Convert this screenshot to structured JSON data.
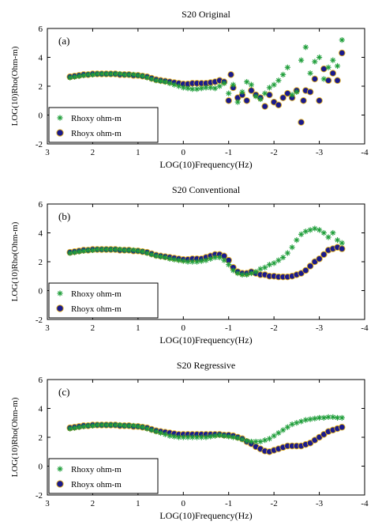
{
  "chart_data": [
    {
      "type": "scatter",
      "title": "S20 Original",
      "panel_label": "(a)",
      "xlabel": "LOG(10)Frequency(Hz)",
      "ylabel": "LOG(10)Rho(Ohm-m)",
      "xlim": [
        3,
        -4
      ],
      "ylim": [
        -2,
        6
      ],
      "xticks": [
        "3",
        "2",
        "1",
        "0",
        "-1",
        "-2",
        "-3",
        "-4"
      ],
      "yticks": [
        "-2",
        "0",
        "2",
        "4",
        "6"
      ],
      "legend_placement": "bottom-left",
      "series": [
        {
          "name": "Rhoxy ohm-m",
          "marker": "star",
          "color": "#1f9e3a",
          "x": [
            2.5,
            2.4,
            2.3,
            2.2,
            2.1,
            2.0,
            1.9,
            1.8,
            1.7,
            1.6,
            1.5,
            1.4,
            1.3,
            1.2,
            1.1,
            1.0,
            0.9,
            0.8,
            0.7,
            0.6,
            0.5,
            0.4,
            0.3,
            0.2,
            0.1,
            0.0,
            -0.1,
            -0.2,
            -0.3,
            -0.4,
            -0.5,
            -0.6,
            -0.7,
            -0.8,
            -0.9,
            -1.0,
            -1.1,
            -1.2,
            -1.3,
            -1.4,
            -1.5,
            -1.6,
            -1.7,
            -1.8,
            -1.9,
            -2.0,
            -2.1,
            -2.2,
            -2.3,
            -2.4,
            -2.5,
            -2.6,
            -2.7,
            -2.8,
            -2.9,
            -3.0,
            -3.1,
            -3.2,
            -3.3,
            -3.4,
            -3.5
          ],
          "y": [
            2.6,
            2.65,
            2.7,
            2.75,
            2.8,
            2.8,
            2.85,
            2.85,
            2.85,
            2.85,
            2.85,
            2.85,
            2.8,
            2.8,
            2.8,
            2.75,
            2.7,
            2.6,
            2.5,
            2.4,
            2.35,
            2.3,
            2.2,
            2.1,
            2.0,
            1.9,
            1.85,
            1.8,
            1.8,
            1.85,
            1.9,
            1.9,
            1.85,
            2.0,
            2.2,
            1.5,
            2.1,
            0.9,
            1.6,
            2.3,
            2.1,
            1.3,
            1.1,
            1.5,
            1.9,
            2.1,
            2.4,
            2.8,
            3.3,
            1.4,
            1.6,
            3.8,
            4.7,
            2.9,
            3.7,
            4.0,
            2.5,
            3.3,
            3.8,
            3.4,
            5.2
          ]
        },
        {
          "name": "Rhoyx ohm-m",
          "marker": "circle",
          "color": "#1a1a8c",
          "x": [
            2.5,
            2.4,
            2.3,
            2.2,
            2.1,
            2.0,
            1.9,
            1.8,
            1.7,
            1.6,
            1.5,
            1.4,
            1.3,
            1.2,
            1.1,
            1.0,
            0.9,
            0.8,
            0.7,
            0.6,
            0.5,
            0.4,
            0.3,
            0.2,
            0.1,
            0.0,
            -0.1,
            -0.2,
            -0.3,
            -0.4,
            -0.5,
            -0.6,
            -0.7,
            -0.8,
            -0.9,
            -1.0,
            -1.05,
            -1.1,
            -1.2,
            -1.3,
            -1.4,
            -1.5,
            -1.6,
            -1.7,
            -1.8,
            -1.9,
            -2.0,
            -2.1,
            -2.2,
            -2.3,
            -2.4,
            -2.5,
            -2.6,
            -2.65,
            -2.7,
            -2.8,
            -2.9,
            -3.0,
            -3.1,
            -3.2,
            -3.3,
            -3.4,
            -3.5
          ],
          "y": [
            2.65,
            2.7,
            2.75,
            2.8,
            2.8,
            2.85,
            2.85,
            2.85,
            2.85,
            2.85,
            2.85,
            2.8,
            2.8,
            2.8,
            2.75,
            2.75,
            2.7,
            2.65,
            2.55,
            2.45,
            2.4,
            2.35,
            2.3,
            2.25,
            2.2,
            2.15,
            2.15,
            2.2,
            2.2,
            2.2,
            2.2,
            2.25,
            2.3,
            2.4,
            2.3,
            1.0,
            2.8,
            1.9,
            1.2,
            1.4,
            1.0,
            1.7,
            1.4,
            1.2,
            0.6,
            1.4,
            0.9,
            0.7,
            1.2,
            1.5,
            1.2,
            1.7,
            -0.5,
            1.0,
            1.7,
            1.6,
            2.5,
            1.0,
            3.2,
            2.4,
            2.9,
            2.4,
            4.3
          ]
        }
      ]
    },
    {
      "type": "scatter",
      "title": "S20 Conventional",
      "panel_label": "(b)",
      "xlabel": "LOG(10)Frequency(Hz)",
      "ylabel": "LOG(10)Rho(Ohm-m)",
      "xlim": [
        3,
        -4
      ],
      "ylim": [
        -2,
        6
      ],
      "xticks": [
        "3",
        "2",
        "1",
        "0",
        "-1",
        "-2",
        "-3",
        "-4"
      ],
      "yticks": [
        "-2",
        "0",
        "2",
        "4",
        "6"
      ],
      "legend_placement": "bottom-left",
      "series": [
        {
          "name": "Rhoxy ohm-m",
          "marker": "star",
          "color": "#1f9e3a",
          "x": [
            2.5,
            2.4,
            2.3,
            2.2,
            2.1,
            2.0,
            1.9,
            1.8,
            1.7,
            1.6,
            1.5,
            1.4,
            1.3,
            1.2,
            1.1,
            1.0,
            0.9,
            0.8,
            0.7,
            0.6,
            0.5,
            0.4,
            0.3,
            0.2,
            0.1,
            0.0,
            -0.1,
            -0.2,
            -0.3,
            -0.4,
            -0.5,
            -0.6,
            -0.7,
            -0.8,
            -0.9,
            -1.0,
            -1.1,
            -1.2,
            -1.3,
            -1.4,
            -1.5,
            -1.6,
            -1.7,
            -1.8,
            -1.9,
            -2.0,
            -2.1,
            -2.2,
            -2.3,
            -2.4,
            -2.5,
            -2.6,
            -2.7,
            -2.8,
            -2.9,
            -3.0,
            -3.1,
            -3.2,
            -3.3,
            -3.4,
            -3.5
          ],
          "y": [
            2.6,
            2.65,
            2.7,
            2.75,
            2.8,
            2.8,
            2.85,
            2.85,
            2.85,
            2.85,
            2.85,
            2.85,
            2.8,
            2.8,
            2.8,
            2.75,
            2.7,
            2.6,
            2.5,
            2.4,
            2.35,
            2.3,
            2.2,
            2.15,
            2.1,
            2.05,
            2.0,
            2.0,
            2.0,
            2.05,
            2.1,
            2.2,
            2.3,
            2.3,
            2.1,
            1.8,
            1.4,
            1.2,
            1.1,
            1.1,
            1.2,
            1.3,
            1.5,
            1.6,
            1.8,
            1.9,
            2.1,
            2.3,
            2.6,
            3.0,
            3.5,
            3.9,
            4.1,
            4.2,
            4.3,
            4.2,
            4.0,
            3.7,
            4.0,
            3.5,
            3.3
          ]
        },
        {
          "name": "Rhoyx ohm-m",
          "marker": "circle",
          "color": "#1a1a8c",
          "x": [
            2.5,
            2.4,
            2.3,
            2.2,
            2.1,
            2.0,
            1.9,
            1.8,
            1.7,
            1.6,
            1.5,
            1.4,
            1.3,
            1.2,
            1.1,
            1.0,
            0.9,
            0.8,
            0.7,
            0.6,
            0.5,
            0.4,
            0.3,
            0.2,
            0.1,
            0.0,
            -0.1,
            -0.2,
            -0.3,
            -0.4,
            -0.5,
            -0.6,
            -0.7,
            -0.8,
            -0.9,
            -1.0,
            -1.1,
            -1.2,
            -1.3,
            -1.4,
            -1.5,
            -1.6,
            -1.7,
            -1.8,
            -1.9,
            -2.0,
            -2.1,
            -2.2,
            -2.3,
            -2.4,
            -2.5,
            -2.6,
            -2.7,
            -2.8,
            -2.9,
            -3.0,
            -3.1,
            -3.2,
            -3.3,
            -3.4,
            -3.5
          ],
          "y": [
            2.65,
            2.7,
            2.75,
            2.8,
            2.8,
            2.85,
            2.85,
            2.85,
            2.85,
            2.85,
            2.85,
            2.8,
            2.8,
            2.8,
            2.75,
            2.75,
            2.7,
            2.65,
            2.55,
            2.45,
            2.4,
            2.35,
            2.3,
            2.25,
            2.2,
            2.15,
            2.15,
            2.2,
            2.2,
            2.2,
            2.3,
            2.4,
            2.5,
            2.5,
            2.4,
            2.1,
            1.6,
            1.3,
            1.2,
            1.2,
            1.3,
            1.2,
            1.1,
            1.1,
            1.0,
            1.0,
            0.95,
            0.95,
            0.95,
            1.0,
            1.1,
            1.2,
            1.4,
            1.7,
            2.0,
            2.2,
            2.5,
            2.8,
            2.9,
            3.0,
            2.9
          ]
        }
      ]
    },
    {
      "type": "scatter",
      "title": "S20 Regressive",
      "panel_label": "(c)",
      "xlabel": "LOG(10)Frequency(Hz)",
      "ylabel": "LOG(10)Rho(Ohm-m)",
      "xlim": [
        3,
        -4
      ],
      "ylim": [
        -2,
        6
      ],
      "xticks": [
        "3",
        "2",
        "1",
        "0",
        "-1",
        "-2",
        "-3",
        "-4"
      ],
      "yticks": [
        "-2",
        "0",
        "2",
        "4",
        "6"
      ],
      "legend_placement": "bottom-left",
      "series": [
        {
          "name": "Rhoxy ohm-m",
          "marker": "star",
          "color": "#1f9e3a",
          "x": [
            2.5,
            2.4,
            2.3,
            2.2,
            2.1,
            2.0,
            1.9,
            1.8,
            1.7,
            1.6,
            1.5,
            1.4,
            1.3,
            1.2,
            1.1,
            1.0,
            0.9,
            0.8,
            0.7,
            0.6,
            0.5,
            0.4,
            0.3,
            0.2,
            0.1,
            0.0,
            -0.1,
            -0.2,
            -0.3,
            -0.4,
            -0.5,
            -0.6,
            -0.7,
            -0.8,
            -0.9,
            -1.0,
            -1.1,
            -1.2,
            -1.3,
            -1.4,
            -1.5,
            -1.6,
            -1.7,
            -1.8,
            -1.9,
            -2.0,
            -2.1,
            -2.2,
            -2.3,
            -2.4,
            -2.5,
            -2.6,
            -2.7,
            -2.8,
            -2.9,
            -3.0,
            -3.1,
            -3.2,
            -3.3,
            -3.4,
            -3.5
          ],
          "y": [
            2.6,
            2.65,
            2.7,
            2.75,
            2.8,
            2.8,
            2.85,
            2.85,
            2.85,
            2.85,
            2.85,
            2.85,
            2.8,
            2.8,
            2.8,
            2.75,
            2.7,
            2.6,
            2.5,
            2.4,
            2.3,
            2.2,
            2.1,
            2.05,
            2.0,
            2.0,
            2.0,
            2.0,
            2.0,
            2.0,
            2.0,
            2.05,
            2.1,
            2.15,
            2.1,
            2.05,
            2.0,
            1.95,
            1.85,
            1.75,
            1.7,
            1.7,
            1.7,
            1.8,
            1.9,
            2.1,
            2.3,
            2.5,
            2.7,
            2.9,
            3.0,
            3.1,
            3.2,
            3.25,
            3.3,
            3.35,
            3.35,
            3.4,
            3.4,
            3.35,
            3.35
          ]
        },
        {
          "name": "Rhoyx ohm-m",
          "marker": "circle",
          "color": "#1a1a8c",
          "x": [
            2.5,
            2.4,
            2.3,
            2.2,
            2.1,
            2.0,
            1.9,
            1.8,
            1.7,
            1.6,
            1.5,
            1.4,
            1.3,
            1.2,
            1.1,
            1.0,
            0.9,
            0.8,
            0.7,
            0.6,
            0.5,
            0.4,
            0.3,
            0.2,
            0.1,
            0.0,
            -0.1,
            -0.2,
            -0.3,
            -0.4,
            -0.5,
            -0.6,
            -0.7,
            -0.8,
            -0.9,
            -1.0,
            -1.1,
            -1.2,
            -1.3,
            -1.4,
            -1.5,
            -1.6,
            -1.7,
            -1.8,
            -1.9,
            -2.0,
            -2.1,
            -2.2,
            -2.3,
            -2.4,
            -2.5,
            -2.6,
            -2.7,
            -2.8,
            -2.9,
            -3.0,
            -3.1,
            -3.2,
            -3.3,
            -3.4,
            -3.5
          ],
          "y": [
            2.65,
            2.7,
            2.75,
            2.8,
            2.8,
            2.85,
            2.85,
            2.85,
            2.85,
            2.85,
            2.85,
            2.8,
            2.8,
            2.8,
            2.75,
            2.75,
            2.7,
            2.65,
            2.55,
            2.45,
            2.4,
            2.35,
            2.3,
            2.25,
            2.2,
            2.2,
            2.2,
            2.2,
            2.2,
            2.2,
            2.2,
            2.2,
            2.2,
            2.2,
            2.15,
            2.15,
            2.1,
            2.0,
            1.9,
            1.7,
            1.55,
            1.35,
            1.2,
            1.05,
            1.0,
            1.1,
            1.2,
            1.3,
            1.4,
            1.4,
            1.4,
            1.4,
            1.5,
            1.6,
            1.8,
            2.0,
            2.2,
            2.4,
            2.5,
            2.6,
            2.7
          ]
        }
      ]
    }
  ]
}
